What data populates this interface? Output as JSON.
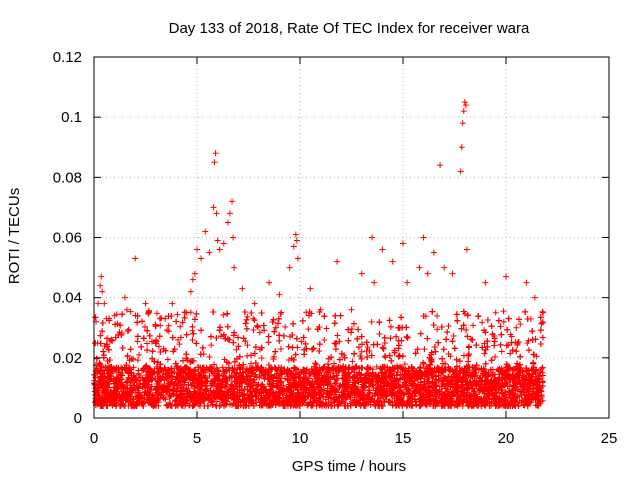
{
  "chart_data": {
    "type": "scatter",
    "title": "Day 133 of 2018, Rate Of TEC Index for receiver wara",
    "xlabel": "GPS time / hours",
    "ylabel": "ROTI / TECUs",
    "xlim": [
      0,
      25
    ],
    "ylim": [
      0,
      0.12
    ],
    "x_ticks": [
      0,
      5,
      10,
      15,
      20,
      25
    ],
    "x_tick_labels": [
      "0",
      "5",
      "10",
      "15",
      "20",
      "25"
    ],
    "y_ticks": [
      0,
      0.02,
      0.04,
      0.06,
      0.08,
      0.1,
      0.12
    ],
    "y_tick_labels": [
      "0",
      "0.02",
      "0.04",
      "0.06",
      "0.08",
      "0.1",
      "0.12"
    ],
    "grid": true,
    "marker": "+",
    "marker_color": "#ff0000",
    "data_x_range": [
      0,
      21.8
    ],
    "series": [
      {
        "x": [
          0.1,
          0.2,
          0.3,
          0.35,
          0.4,
          0.5,
          0.6,
          1.0,
          1.5,
          1.6,
          2.0,
          2.5,
          3.2,
          3.8,
          4.5,
          4.7,
          4.8,
          4.9,
          5.0,
          5.2,
          5.4,
          5.6,
          5.8,
          5.85,
          5.9,
          5.95,
          6.0,
          6.1,
          6.3,
          6.5,
          6.6,
          6.7,
          6.75,
          6.8,
          7.2,
          7.8,
          8.5,
          9.0,
          9.5,
          9.7,
          9.8,
          9.85,
          9.9,
          10.5,
          11.0,
          11.8,
          12.5,
          13.0,
          13.5,
          13.6,
          14.0,
          14.5,
          15.0,
          15.2,
          15.8,
          16.0,
          16.2,
          16.5,
          16.8,
          17.0,
          17.4,
          17.8,
          17.85,
          17.9,
          17.95,
          18.0,
          18.05,
          18.1,
          19.0,
          19.5,
          20.0,
          20.5,
          21.0,
          21.4,
          21.8
        ],
        "y": [
          0.032,
          0.038,
          0.044,
          0.047,
          0.042,
          0.038,
          0.033,
          0.034,
          0.04,
          0.036,
          0.053,
          0.038,
          0.033,
          0.038,
          0.035,
          0.042,
          0.046,
          0.048,
          0.056,
          0.053,
          0.062,
          0.055,
          0.07,
          0.085,
          0.088,
          0.068,
          0.059,
          0.056,
          0.058,
          0.065,
          0.068,
          0.072,
          0.06,
          0.05,
          0.043,
          0.038,
          0.045,
          0.041,
          0.05,
          0.057,
          0.061,
          0.059,
          0.053,
          0.043,
          0.036,
          0.052,
          0.036,
          0.048,
          0.06,
          0.045,
          0.056,
          0.052,
          0.058,
          0.045,
          0.05,
          0.06,
          0.048,
          0.055,
          0.084,
          0.05,
          0.048,
          0.082,
          0.09,
          0.098,
          0.102,
          0.105,
          0.104,
          0.056,
          0.045,
          0.035,
          0.047,
          0.03,
          0.045,
          0.04,
          0.035
        ]
      }
    ]
  }
}
